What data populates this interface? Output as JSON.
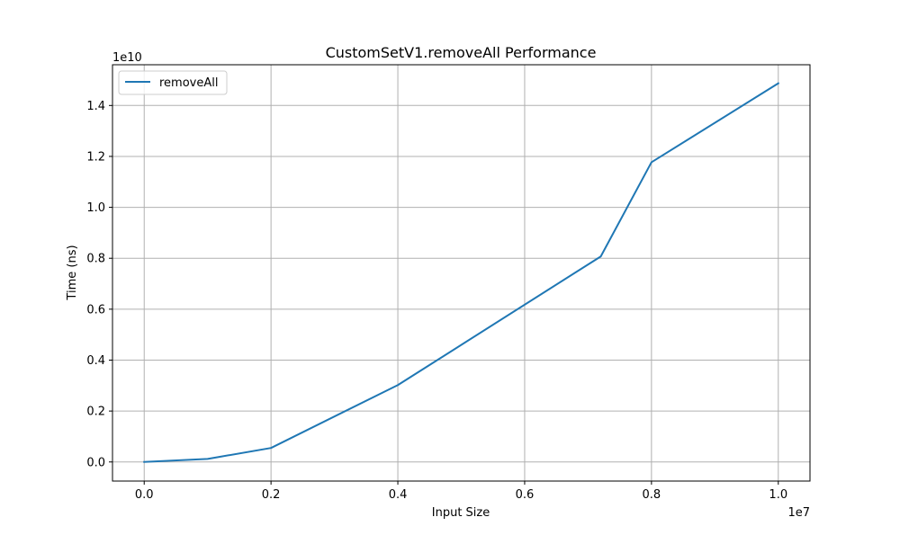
{
  "chart_data": {
    "type": "line",
    "title": "CustomSetV1.removeAll Performance",
    "xlabel": "Input Size",
    "ylabel": "Time (ns)",
    "x_offset_label": "1e7",
    "y_offset_label": "1e10",
    "xlim": [
      -0.05,
      1.05
    ],
    "ylim": [
      -0.075,
      1.56
    ],
    "x_ticks": [
      0.0,
      0.2,
      0.4,
      0.6,
      0.8,
      1.0
    ],
    "x_tick_labels": [
      "0.0",
      "0.2",
      "0.4",
      "0.6",
      "0.8",
      "1.0"
    ],
    "y_ticks": [
      0.0,
      0.2,
      0.4,
      0.6,
      0.8,
      1.0,
      1.2,
      1.4
    ],
    "y_tick_labels": [
      "0.0",
      "0.2",
      "0.4",
      "0.6",
      "0.8",
      "1.0",
      "1.2",
      "1.4"
    ],
    "grid": true,
    "legend_position": "top-left",
    "series": [
      {
        "name": "removeAll",
        "color": "#1f77b4",
        "x": [
          0.0,
          0.1,
          0.2,
          0.4,
          0.72,
          0.8,
          1.0
        ],
        "y": [
          0.0,
          0.012,
          0.055,
          0.302,
          0.807,
          1.177,
          1.487
        ]
      }
    ]
  }
}
